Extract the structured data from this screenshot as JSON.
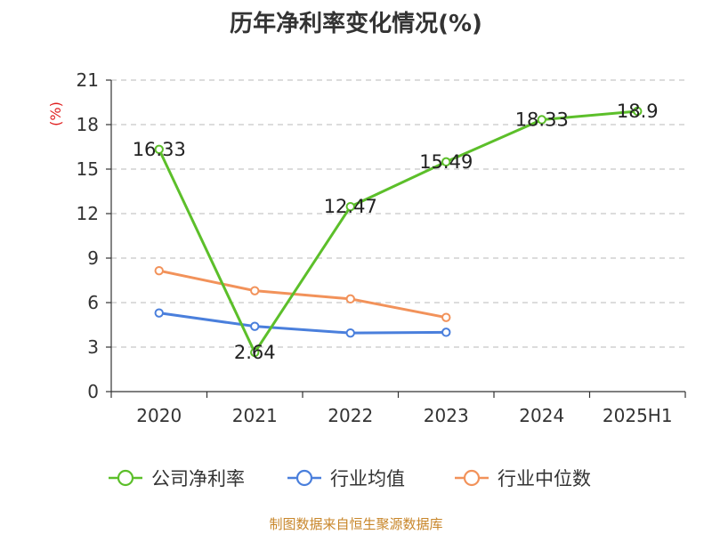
{
  "title": "历年净利率变化情况(%)",
  "source": "制图数据来自恒生聚源数据库",
  "colors": {
    "grid": "#c8c8c8",
    "axis": "#333333",
    "unit": "#e02020"
  },
  "chart_data": {
    "type": "line",
    "title": "历年净利率变化情况(%)",
    "ylabel": "(%)",
    "categories": [
      "2020",
      "2021",
      "2022",
      "2023",
      "2024",
      "2025H1"
    ],
    "ylim": [
      0,
      21
    ],
    "yticks": [
      0,
      3,
      6,
      9,
      12,
      15,
      18,
      21
    ],
    "grid": true,
    "legend_position": "bottom",
    "series": [
      {
        "name": "公司净利率",
        "color": "#5cbf2a",
        "values": [
          16.33,
          2.64,
          12.47,
          15.49,
          18.33,
          18.9
        ],
        "show_labels": true,
        "labels": [
          "16.33",
          "2.64",
          "12.47",
          "15.49",
          "18.33",
          "18.9"
        ]
      },
      {
        "name": "行业均值",
        "color": "#4a7fdc",
        "values": [
          5.3,
          4.4,
          3.95,
          4.0,
          null,
          null
        ],
        "show_labels": false
      },
      {
        "name": "行业中位数",
        "color": "#f2925a",
        "values": [
          8.15,
          6.8,
          6.25,
          5.0,
          null,
          null
        ],
        "show_labels": false
      }
    ]
  }
}
